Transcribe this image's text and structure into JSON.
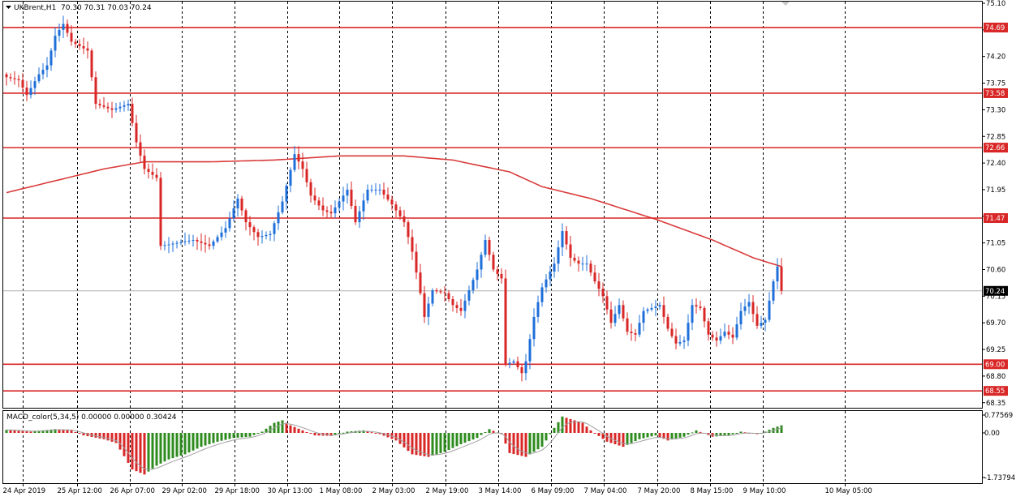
{
  "header": {
    "symbol": "UKBrent,H1",
    "ohlc": "70.30 70.31 70.03 70.24"
  },
  "macd": {
    "label": "MACD_color(5,34,5) 0.00000 0.00000 0.30424",
    "ticks": [
      "0.77569",
      "0.00",
      "-1.73794"
    ]
  },
  "colors": {
    "bull": "#1e6fd9",
    "bear": "#d92626",
    "ma": "#d93a3a",
    "level": "#d92626",
    "hist_up": "#2e8b1e",
    "hist_down": "#d92626",
    "signal": "#a0a0a0",
    "current": "#000000"
  },
  "chart_data": [
    {
      "type": "candlestick",
      "title": "UKBrent,H1",
      "ylim": [
        68.1,
        75.1
      ],
      "y_ticks": [
        "75.10",
        "74.65",
        "74.20",
        "73.75",
        "73.30",
        "72.85",
        "72.40",
        "71.95",
        "71.50",
        "71.05",
        "70.60",
        "70.15",
        "69.70",
        "69.25",
        "68.80",
        "68.35"
      ],
      "x_labels": [
        "24 Apr 2019",
        "25 Apr 12:00",
        "26 Apr 07:00",
        "29 Apr 02:00",
        "29 Apr 18:00",
        "30 Apr 13:00",
        "1 May 08:00",
        "2 May 03:00",
        "2 May 19:00",
        "3 May 14:00",
        "6 May 09:00",
        "7 May 04:00",
        "7 May 20:00",
        "8 May 15:00",
        "9 May 10:00",
        "10 May 05:00"
      ],
      "levels": [
        74.69,
        73.58,
        72.66,
        71.47,
        69.0,
        68.55
      ],
      "level_labels": [
        "74.69",
        "73.58",
        "72.66",
        "71.47",
        "69.00",
        "68.55"
      ],
      "current_price": 70.24,
      "current_label": "70.24",
      "anchors": [
        [
          0,
          73.85
        ],
        [
          3,
          73.8
        ],
        [
          5,
          73.55
        ],
        [
          8,
          73.9
        ],
        [
          10,
          74.05
        ],
        [
          12,
          74.55
        ],
        [
          14,
          74.75
        ],
        [
          16,
          74.45
        ],
        [
          20,
          74.3
        ],
        [
          22,
          73.4
        ],
        [
          26,
          73.3
        ],
        [
          30,
          73.4
        ],
        [
          32,
          72.75
        ],
        [
          34,
          72.3
        ],
        [
          37,
          72.15
        ],
        [
          38,
          71.0
        ],
        [
          42,
          71.05
        ],
        [
          46,
          71.1
        ],
        [
          50,
          71.0
        ],
        [
          54,
          71.3
        ],
        [
          57,
          71.8
        ],
        [
          59,
          71.4
        ],
        [
          62,
          71.15
        ],
        [
          65,
          71.2
        ],
        [
          68,
          71.75
        ],
        [
          71,
          72.55
        ],
        [
          73,
          72.3
        ],
        [
          75,
          71.85
        ],
        [
          78,
          71.6
        ],
        [
          80,
          71.55
        ],
        [
          84,
          71.95
        ],
        [
          86,
          71.4
        ],
        [
          89,
          71.95
        ],
        [
          92,
          71.95
        ],
        [
          95,
          71.7
        ],
        [
          98,
          71.4
        ],
        [
          100,
          70.9
        ],
        [
          102,
          70.2
        ],
        [
          103,
          69.8
        ],
        [
          105,
          70.25
        ],
        [
          108,
          70.2
        ],
        [
          110,
          70.0
        ],
        [
          112,
          69.9
        ],
        [
          116,
          70.6
        ],
        [
          118,
          71.1
        ],
        [
          120,
          70.6
        ],
        [
          122,
          70.45
        ],
        [
          123,
          69.0
        ],
        [
          125,
          69.05
        ],
        [
          127,
          68.85
        ],
        [
          128,
          69.05
        ],
        [
          130,
          69.8
        ],
        [
          132,
          70.3
        ],
        [
          135,
          70.7
        ],
        [
          137,
          71.25
        ],
        [
          139,
          70.8
        ],
        [
          141,
          70.7
        ],
        [
          143,
          70.7
        ],
        [
          145,
          70.4
        ],
        [
          147,
          70.15
        ],
        [
          149,
          69.7
        ],
        [
          151,
          70.0
        ],
        [
          153,
          69.55
        ],
        [
          155,
          69.5
        ],
        [
          157,
          69.9
        ],
        [
          159,
          69.95
        ],
        [
          161,
          70.0
        ],
        [
          163,
          69.6
        ],
        [
          165,
          69.35
        ],
        [
          167,
          69.4
        ],
        [
          169,
          70.0
        ],
        [
          171,
          69.95
        ],
        [
          173,
          69.5
        ],
        [
          175,
          69.4
        ],
        [
          177,
          69.55
        ],
        [
          179,
          69.45
        ],
        [
          181,
          69.9
        ],
        [
          183,
          70.05
        ],
        [
          185,
          69.65
        ],
        [
          187,
          69.75
        ],
        [
          189,
          70.4
        ],
        [
          190,
          70.65
        ],
        [
          191,
          70.24
        ]
      ],
      "ma_anchors": [
        [
          0,
          71.9
        ],
        [
          12,
          72.1
        ],
        [
          24,
          72.3
        ],
        [
          34,
          72.42
        ],
        [
          50,
          72.42
        ],
        [
          66,
          72.45
        ],
        [
          82,
          72.52
        ],
        [
          98,
          72.52
        ],
        [
          110,
          72.45
        ],
        [
          124,
          72.25
        ],
        [
          132,
          72.0
        ],
        [
          144,
          71.8
        ],
        [
          160,
          71.45
        ],
        [
          174,
          71.1
        ],
        [
          184,
          70.8
        ],
        [
          191,
          70.65
        ]
      ]
    },
    {
      "type": "bar",
      "title": "MACD_color(5,34,5)",
      "ylim": [
        -1.73794,
        0.77569
      ],
      "hist_anchors": [
        [
          0,
          0.12
        ],
        [
          6,
          0.05
        ],
        [
          12,
          0.15
        ],
        [
          16,
          0.1
        ],
        [
          19,
          -0.1
        ],
        [
          24,
          -0.25
        ],
        [
          27,
          -0.4
        ],
        [
          31,
          -1.45
        ],
        [
          34,
          -1.65
        ],
        [
          37,
          -1.3
        ],
        [
          40,
          -1.05
        ],
        [
          44,
          -0.85
        ],
        [
          48,
          -0.55
        ],
        [
          52,
          -0.35
        ],
        [
          56,
          -0.2
        ],
        [
          60,
          -0.15
        ],
        [
          63,
          0.05
        ],
        [
          66,
          0.4
        ],
        [
          68,
          0.5
        ],
        [
          70,
          0.3
        ],
        [
          73,
          0.1
        ],
        [
          76,
          -0.1
        ],
        [
          80,
          -0.12
        ],
        [
          84,
          0.05
        ],
        [
          88,
          0.1
        ],
        [
          92,
          -0.05
        ],
        [
          96,
          -0.3
        ],
        [
          100,
          -0.85
        ],
        [
          104,
          -0.95
        ],
        [
          108,
          -0.75
        ],
        [
          112,
          -0.45
        ],
        [
          116,
          -0.2
        ],
        [
          119,
          0.15
        ],
        [
          122,
          -0.05
        ],
        [
          124,
          -0.8
        ],
        [
          128,
          -0.95
        ],
        [
          132,
          -0.55
        ],
        [
          135,
          0.2
        ],
        [
          137,
          0.65
        ],
        [
          139,
          0.55
        ],
        [
          142,
          0.4
        ],
        [
          144,
          0.1
        ],
        [
          148,
          -0.35
        ],
        [
          152,
          -0.55
        ],
        [
          156,
          -0.25
        ],
        [
          160,
          -0.1
        ],
        [
          163,
          -0.3
        ],
        [
          167,
          -0.15
        ],
        [
          170,
          0.1
        ],
        [
          174,
          -0.15
        ],
        [
          178,
          -0.1
        ],
        [
          181,
          0.05
        ],
        [
          185,
          -0.05
        ],
        [
          187,
          0.05
        ],
        [
          189,
          0.2
        ],
        [
          191,
          0.3
        ]
      ]
    }
  ]
}
